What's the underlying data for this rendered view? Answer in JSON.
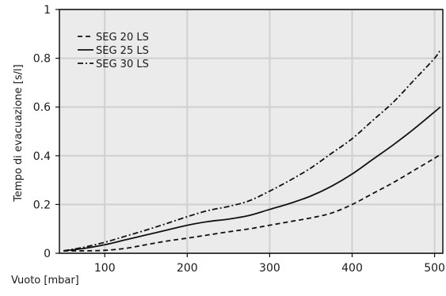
{
  "chart_data": {
    "type": "line",
    "title": "",
    "xlabel": "Vuoto [mbar]",
    "ylabel": "Tempo di evacuazione [s/l]",
    "xlim": [
      45,
      510
    ],
    "ylim": [
      0,
      1
    ],
    "xticks": [
      "100",
      "200",
      "300",
      "400",
      "500"
    ],
    "yticks": [
      "0",
      "0.2",
      "0.4",
      "0.6",
      "0.8",
      "1"
    ],
    "grid": true,
    "legend_position": "top-left",
    "series": [
      {
        "name": "SEG 20 LS",
        "style": "dashed",
        "x": [
          50,
          75,
          100,
          125,
          150,
          175,
          200,
          225,
          250,
          275,
          300,
          325,
          350,
          375,
          400,
          425,
          450,
          475,
          500,
          507
        ],
        "y": [
          0.01,
          0.01,
          0.012,
          0.02,
          0.035,
          0.05,
          0.062,
          0.075,
          0.088,
          0.1,
          0.115,
          0.13,
          0.145,
          0.165,
          0.2,
          0.245,
          0.29,
          0.34,
          0.39,
          0.405
        ]
      },
      {
        "name": "SEG 25 LS",
        "style": "solid",
        "x": [
          50,
          75,
          100,
          125,
          150,
          175,
          200,
          225,
          250,
          275,
          300,
          325,
          350,
          375,
          400,
          425,
          450,
          475,
          500,
          507
        ],
        "y": [
          0.01,
          0.02,
          0.035,
          0.055,
          0.075,
          0.095,
          0.115,
          0.13,
          0.14,
          0.155,
          0.18,
          0.205,
          0.235,
          0.275,
          0.325,
          0.385,
          0.445,
          0.51,
          0.58,
          0.6
        ]
      },
      {
        "name": "SEG 30 LS",
        "style": "dashdot",
        "x": [
          50,
          75,
          100,
          125,
          150,
          175,
          200,
          225,
          250,
          275,
          300,
          325,
          350,
          375,
          400,
          425,
          450,
          475,
          500,
          507
        ],
        "y": [
          0.01,
          0.025,
          0.045,
          0.07,
          0.095,
          0.122,
          0.15,
          0.175,
          0.192,
          0.215,
          0.255,
          0.3,
          0.35,
          0.41,
          0.47,
          0.545,
          0.62,
          0.71,
          0.8,
          0.835
        ]
      }
    ]
  }
}
